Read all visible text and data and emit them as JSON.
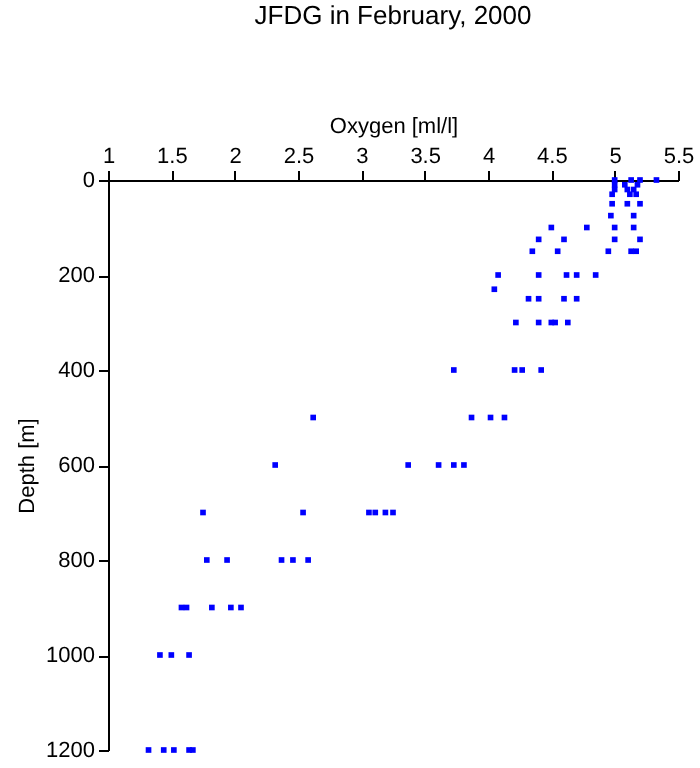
{
  "chart_data": {
    "type": "scatter",
    "title": "JFDG in February, 2000",
    "xlabel": "Oxygen [ml/l]",
    "ylabel": "Depth [m]",
    "x": [
      5.0,
      5.13,
      5.2,
      5.33,
      5.0,
      5.08,
      5.18,
      5.0,
      5.1,
      5.15,
      4.98,
      5.12,
      5.17,
      4.98,
      5.1,
      5.2,
      4.97,
      5.15,
      4.5,
      4.78,
      5.0,
      5.15,
      4.4,
      4.6,
      5.0,
      5.2,
      4.35,
      4.55,
      4.95,
      5.13,
      5.17,
      4.08,
      4.4,
      4.62,
      4.7,
      4.85,
      4.05,
      4.32,
      4.4,
      4.6,
      4.7,
      4.22,
      4.4,
      4.5,
      4.53,
      4.63,
      3.73,
      4.21,
      4.27,
      4.42,
      2.62,
      3.87,
      4.02,
      4.13,
      2.32,
      3.37,
      3.61,
      3.73,
      3.81,
      1.75,
      2.54,
      3.06,
      3.11,
      3.19,
      3.25,
      1.78,
      1.94,
      2.37,
      2.46,
      2.58,
      1.58,
      1.62,
      1.82,
      1.97,
      2.05,
      1.41,
      1.5,
      1.64,
      1.32,
      1.44,
      1.52,
      1.64,
      1.67
    ],
    "values": [
      0,
      0,
      0,
      0,
      10,
      10,
      10,
      20,
      20,
      20,
      30,
      30,
      30,
      50,
      50,
      50,
      75,
      75,
      100,
      100,
      100,
      100,
      125,
      125,
      125,
      125,
      150,
      150,
      150,
      150,
      150,
      200,
      200,
      200,
      200,
      200,
      230,
      250,
      250,
      250,
      250,
      300,
      300,
      300,
      300,
      300,
      400,
      400,
      400,
      400,
      500,
      500,
      500,
      500,
      600,
      600,
      600,
      600,
      600,
      700,
      700,
      700,
      700,
      700,
      700,
      800,
      800,
      800,
      800,
      800,
      900,
      900,
      900,
      900,
      900,
      1000,
      1000,
      1000,
      1200,
      1200,
      1200,
      1200,
      1200
    ],
    "color": "#0000ff",
    "marker": "square",
    "xlim": [
      1,
      5.5
    ],
    "xticks": [
      1,
      1.5,
      2,
      2.5,
      3,
      3.5,
      4,
      4.5,
      5,
      5.5
    ],
    "ylim": [
      1200,
      0
    ],
    "yticks": [
      0,
      200,
      400,
      600,
      800,
      1000,
      1200
    ],
    "grid": false
  }
}
